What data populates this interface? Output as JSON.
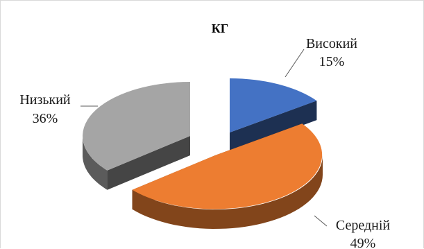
{
  "chart_data": {
    "type": "pie",
    "title": "КГ",
    "slices": [
      {
        "label": "Високий",
        "value": 15,
        "display": "15%",
        "color": "#4472c4"
      },
      {
        "label": "Середній",
        "value": 49,
        "display": "49%",
        "color": "#ed7d31"
      },
      {
        "label": "Низький",
        "value": 36,
        "display": "36%",
        "color": "#a5a5a5"
      }
    ],
    "style": "3d-exploded",
    "legend": "none"
  }
}
